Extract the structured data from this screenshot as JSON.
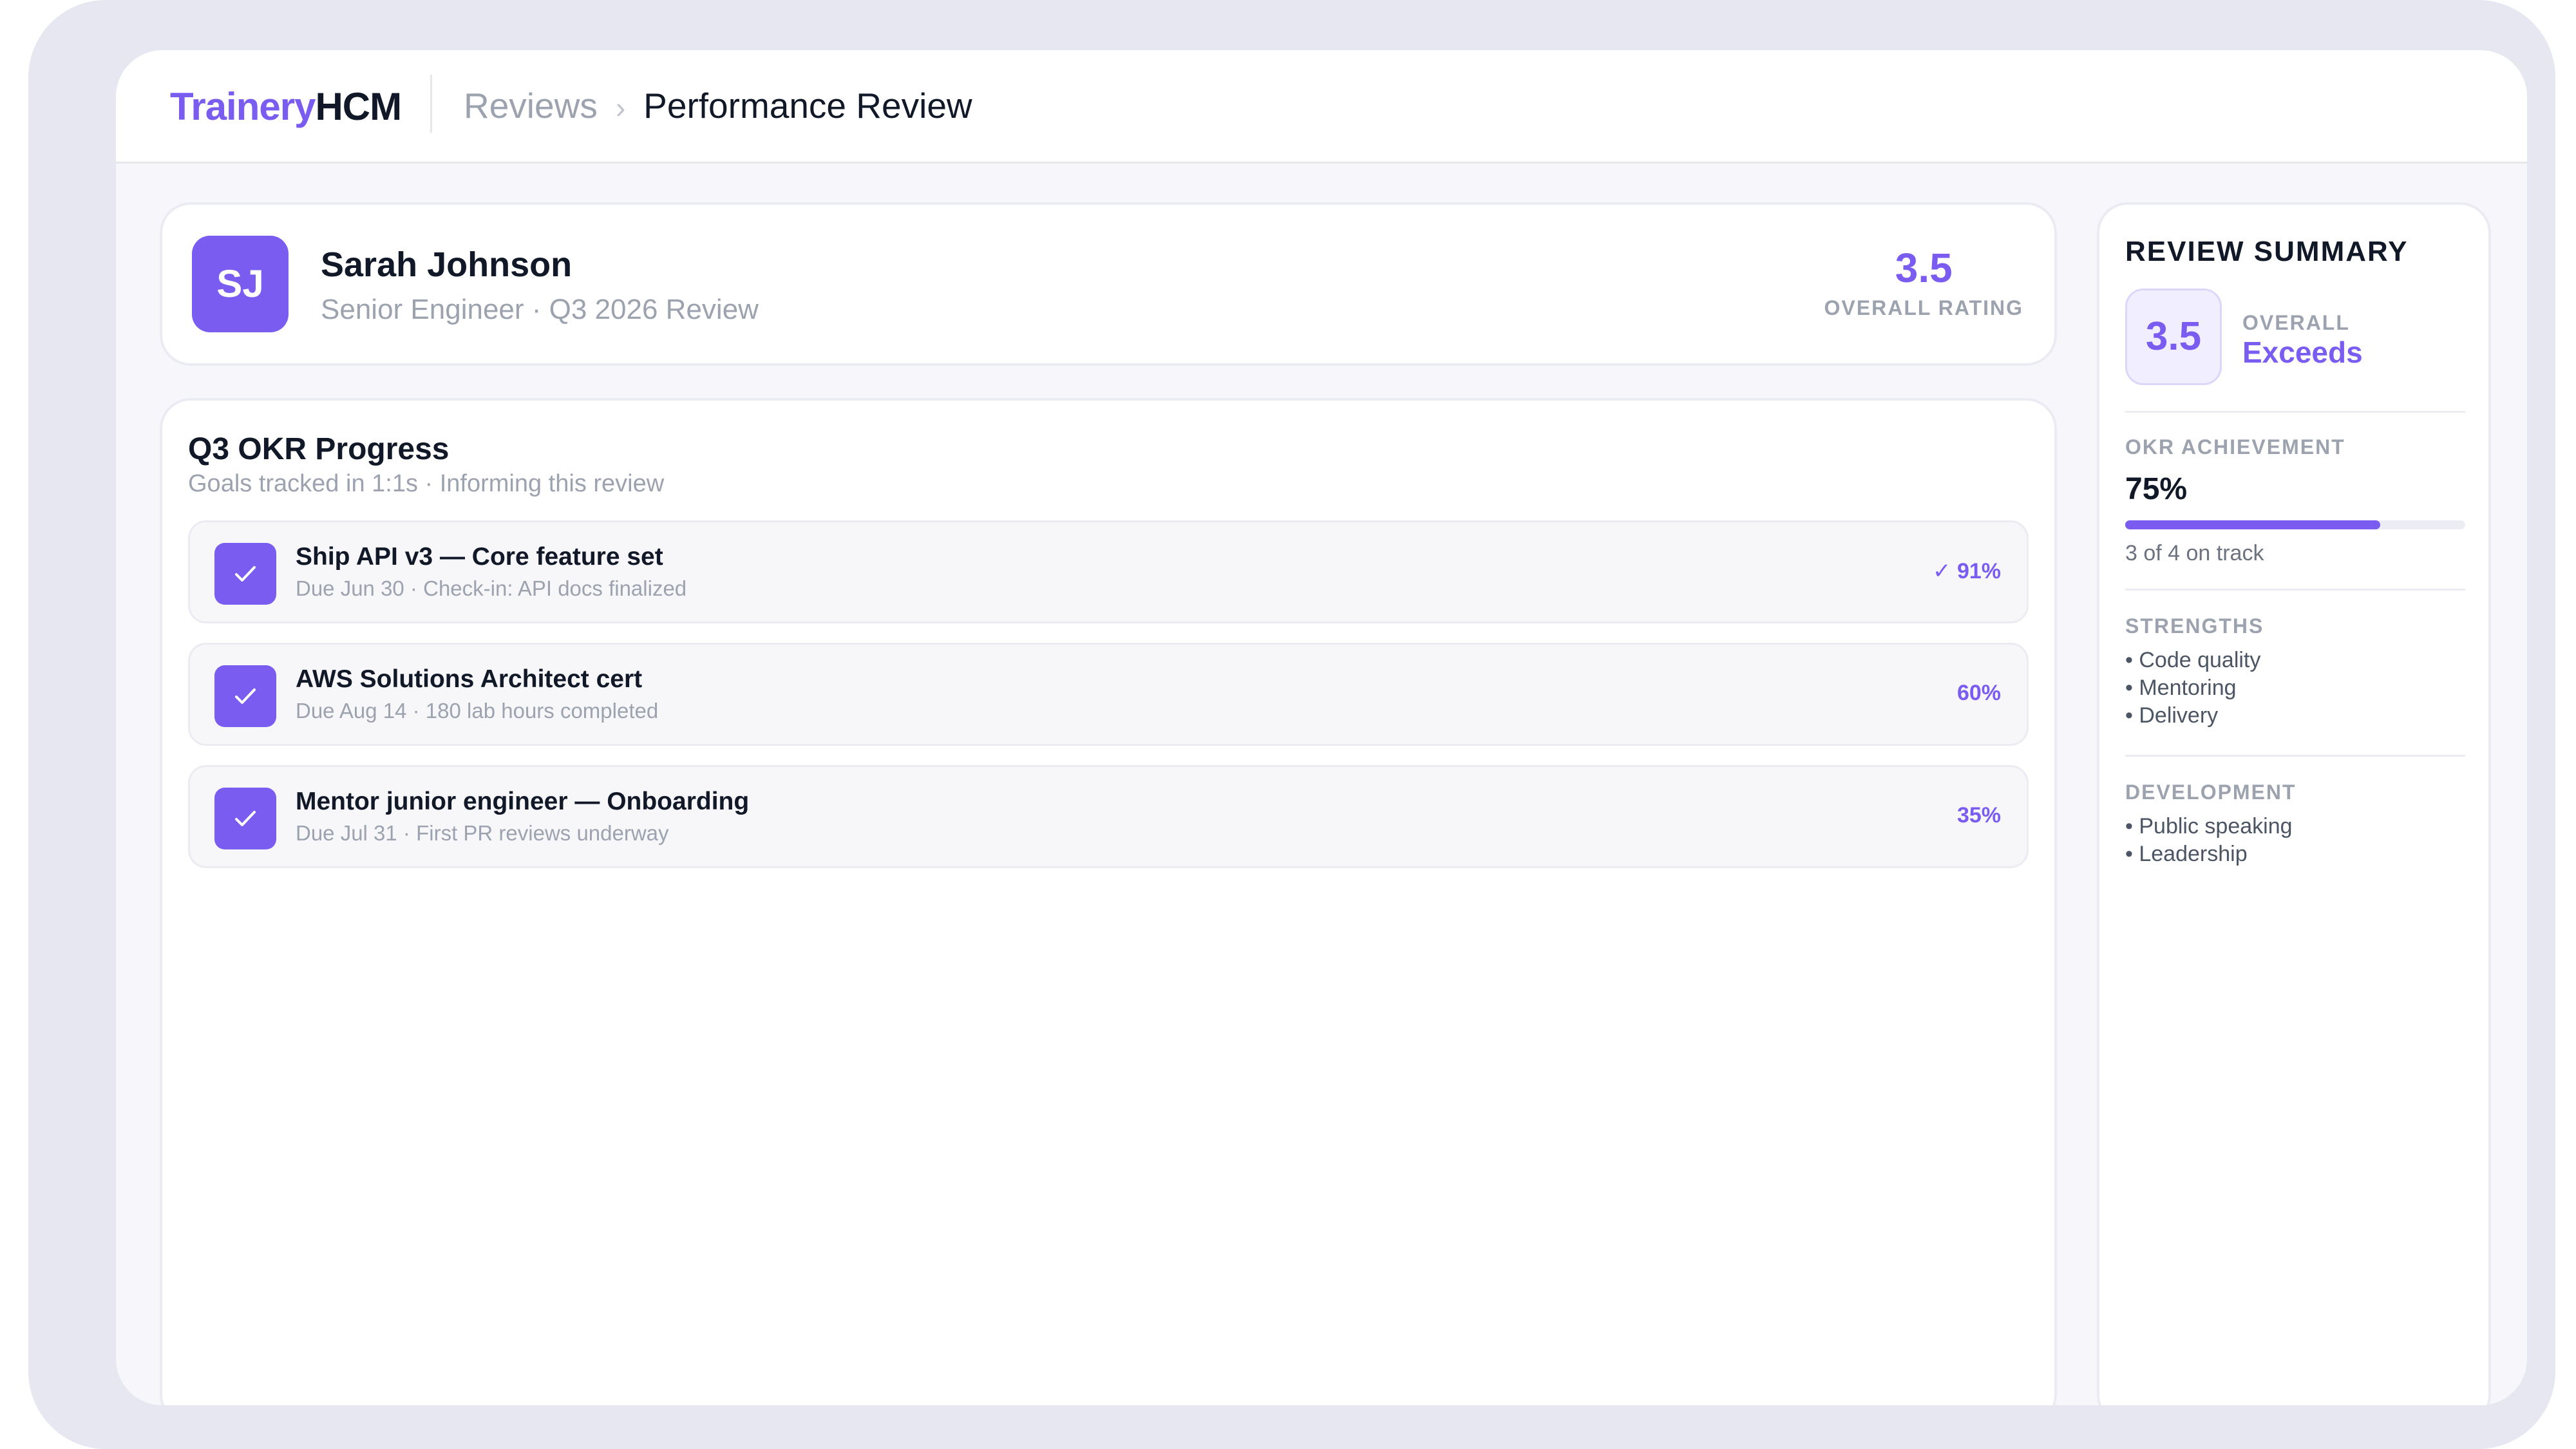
{
  "brand": {
    "part1": "Trainery",
    "part2": "HCM"
  },
  "breadcrumb": {
    "parent": "Reviews",
    "separator": "›",
    "current": "Performance Review"
  },
  "profile": {
    "initials": "SJ",
    "name": "Sarah Johnson",
    "subtitle": "Senior Engineer · Q3 2026 Review",
    "rating_value": "3.5",
    "rating_label": "OVERALL RATING"
  },
  "okr": {
    "title": "Q3 OKR Progress",
    "subtitle": "Goals tracked in 1:1s · Informing this review",
    "goals": [
      {
        "title": "Ship API v3 — Core feature set",
        "detail": "Due Jun 30 · Check-in: API docs finalized",
        "percent_label": "✓ 91%",
        "percent": 91
      },
      {
        "title": "AWS Solutions Architect cert",
        "detail": "Due Aug 14 · 180 lab hours completed",
        "percent_label": "60%",
        "percent": 60
      },
      {
        "title": "Mentor junior engineer — Onboarding",
        "detail": "Due Jul 31 · First PR reviews underway",
        "percent_label": "35%",
        "percent": 35
      }
    ]
  },
  "summary": {
    "title": "REVIEW SUMMARY",
    "overall_value": "3.5",
    "overall_label": "OVERALL",
    "overall_text": "Exceeds",
    "okr_label": "OKR ACHIEVEMENT",
    "okr_percent_text": "75%",
    "okr_percent": 75,
    "okr_note": "3 of 4 on track",
    "strengths_label": "STRENGTHS",
    "strengths": [
      "Code quality",
      "Mentoring",
      "Delivery"
    ],
    "development_label": "DEVELOPMENT",
    "development": [
      "Public speaking",
      "Leadership"
    ]
  },
  "colors": {
    "accent": "#7b5cf0",
    "muted": "#9ca3af",
    "text": "#111827"
  },
  "icons": {
    "goal_status": "check-icon"
  }
}
